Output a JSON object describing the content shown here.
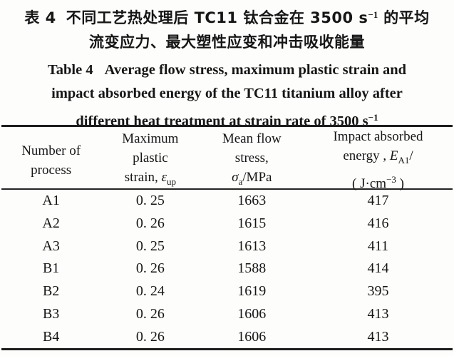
{
  "page": {
    "background": "#fdfdfc",
    "text_color": "#161616",
    "rule_color": "#1d1d1d"
  },
  "title_zh": {
    "label": "表 4",
    "line1_main": "不同工艺热处理后 TC11 钛合金在 3500 s",
    "line1_sup": "−1",
    "line1_tail": " 的平均",
    "line2": "流变应力、最大塑性应变和冲击吸收能量"
  },
  "title_en": {
    "label": "Table 4",
    "line1_rest": "Average flow stress, maximum plastic strain and",
    "line2": "impact absorbed energy of the TC11 titanium alloy after",
    "line3_main": "different heat treatment at strain rate of 3500 s",
    "line3_sup": "−1"
  },
  "table": {
    "columns": {
      "c1": {
        "line1": "Number of",
        "line2": "process"
      },
      "c2": {
        "line1": "Maximum",
        "line2": "plastic",
        "line3_main": "strain, ",
        "line3_symbol": "ε",
        "line3_sub": "up"
      },
      "c3": {
        "line1": "Mean flow",
        "line2": "stress,",
        "line3_symbol": "σ",
        "line3_sub": "a",
        "line3_tail": "/MPa"
      },
      "c4": {
        "line1": "Impact absorbed",
        "line2_main": "energy , ",
        "line2_symbol": "E",
        "line2_sub": "A1",
        "line2_tail": "/",
        "line3_main": "( J·cm",
        "line3_sup": "−3",
        "line3_tail": " )"
      }
    },
    "rows": [
      [
        "A1",
        "0. 25",
        "1663",
        "417"
      ],
      [
        "A2",
        "0. 26",
        "1615",
        "416"
      ],
      [
        "A3",
        "0. 25",
        "1613",
        "411"
      ],
      [
        "B1",
        "0. 26",
        "1588",
        "414"
      ],
      [
        "B2",
        "0. 24",
        "1619",
        "395"
      ],
      [
        "B3",
        "0. 26",
        "1606",
        "413"
      ],
      [
        "B4",
        "0. 26",
        "1606",
        "413"
      ]
    ]
  },
  "chart_data": {
    "type": "table",
    "title": "Table 4 Average flow stress, maximum plastic strain and impact absorbed energy of the TC11 titanium alloy after different heat treatment at strain rate of 3500 s−1",
    "columns": [
      "Number of process",
      "Maximum plastic strain, ε_up",
      "Mean flow stress, σ_a/MPa",
      "Impact absorbed energy, E_A1/(J·cm−3)"
    ],
    "rows": [
      [
        "A1",
        0.25,
        1663,
        417
      ],
      [
        "A2",
        0.26,
        1615,
        416
      ],
      [
        "A3",
        0.25,
        1613,
        411
      ],
      [
        "B1",
        0.26,
        1588,
        414
      ],
      [
        "B2",
        0.24,
        1619,
        395
      ],
      [
        "B3",
        0.26,
        1606,
        413
      ],
      [
        "B4",
        0.26,
        1606,
        413
      ]
    ]
  }
}
